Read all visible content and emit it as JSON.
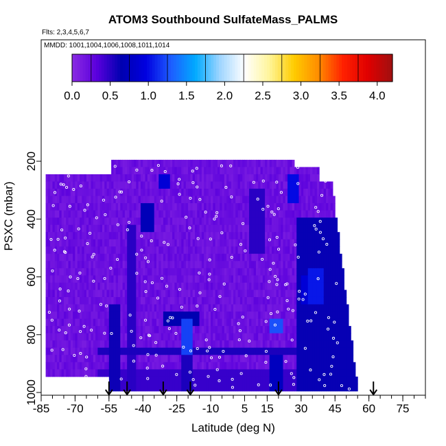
{
  "chart_data": {
    "type": "heatmap",
    "title": "ATOM3 Southbound SulfateMass_PALMS",
    "flights_label": "Flts: 2,3,4,5,6,7",
    "dates_label": "MMDD: 1001,1004,1006,1008,1011,1014",
    "xlabel": "Latitude (deg N)",
    "ylabel": "PSXC (mbar)",
    "xlim": [
      -85,
      85
    ],
    "ylim": [
      1000,
      70
    ],
    "y_reversed": true,
    "x_ticks": [
      -85,
      -70,
      -55,
      -40,
      -25,
      -10,
      5,
      15,
      30,
      45,
      60,
      75
    ],
    "x_minor_step": 5,
    "y_ticks": [
      200,
      400,
      600,
      800,
      1000
    ],
    "colorbar": {
      "min": 0,
      "max": 4.2,
      "ticks": [
        0.0,
        0.5,
        1.0,
        1.5,
        2.0,
        2.5,
        3.0,
        3.5,
        4.0
      ],
      "tick_labels": [
        "0.0",
        "0.5",
        "1.0",
        "1.5",
        "2.0",
        "2.5",
        "3.0",
        "3.5",
        "4.0"
      ],
      "colors": [
        "#8a2be2",
        "#5a00dd",
        "#0000b0",
        "#0000e0",
        "#1e5cff",
        "#00aaff",
        "#9fd5ff",
        "#ffffff",
        "#fff59a",
        "#ffcc00",
        "#ff8c00",
        "#ff2000",
        "#e00000",
        "#a01010"
      ]
    },
    "profile_latitudes": [
      -55,
      -47,
      -31,
      -19,
      20,
      62
    ],
    "grid": false,
    "legend": "none"
  }
}
